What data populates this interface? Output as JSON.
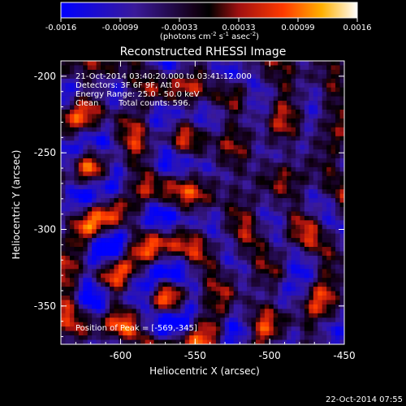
{
  "colorbar": {
    "ticks": [
      "-0.0016",
      "-0.00099",
      "-0.00033",
      "0.00033",
      "0.00099",
      "0.0016"
    ],
    "units_parts": [
      "(photons cm",
      "-2",
      " s",
      "-1",
      " asec",
      "-2",
      ")"
    ]
  },
  "info": {
    "time_range": "21-Oct-2014 03:40:20.000 to 03:41:12.000",
    "detectors": "Detectors: 3F 6F 9F, Att 0",
    "energy": "Energy Range: 25.0 - 50.0 keV",
    "method": "Clean",
    "counts": "Total counts: 596.",
    "peak": "Position of Peak = [-569,-345]"
  },
  "footer_timestamp": "22-Oct-2014 07:55",
  "chart_data": {
    "type": "heatmap",
    "title": "Reconstructed RHESSI Image",
    "xlabel": "Heliocentric X (arcsec)",
    "ylabel": "Heliocentric Y (arcsec)",
    "xlim": [
      -640,
      -450
    ],
    "ylim": [
      -375,
      -190
    ],
    "xticks": [
      -600,
      -550,
      -500,
      -450
    ],
    "yticks": [
      -200,
      -250,
      -300,
      -350
    ],
    "clim": [
      -0.0016,
      0.0016
    ],
    "colormap": "red-temperature (blue-purple-black-red-orange-yellow-white)",
    "grid_size": [
      64,
      64
    ],
    "peak_position": [
      -569,
      -345
    ],
    "note": "Per-pixel values are not legible; map is an approximated ripple/noise pattern around the cleaned source."
  }
}
